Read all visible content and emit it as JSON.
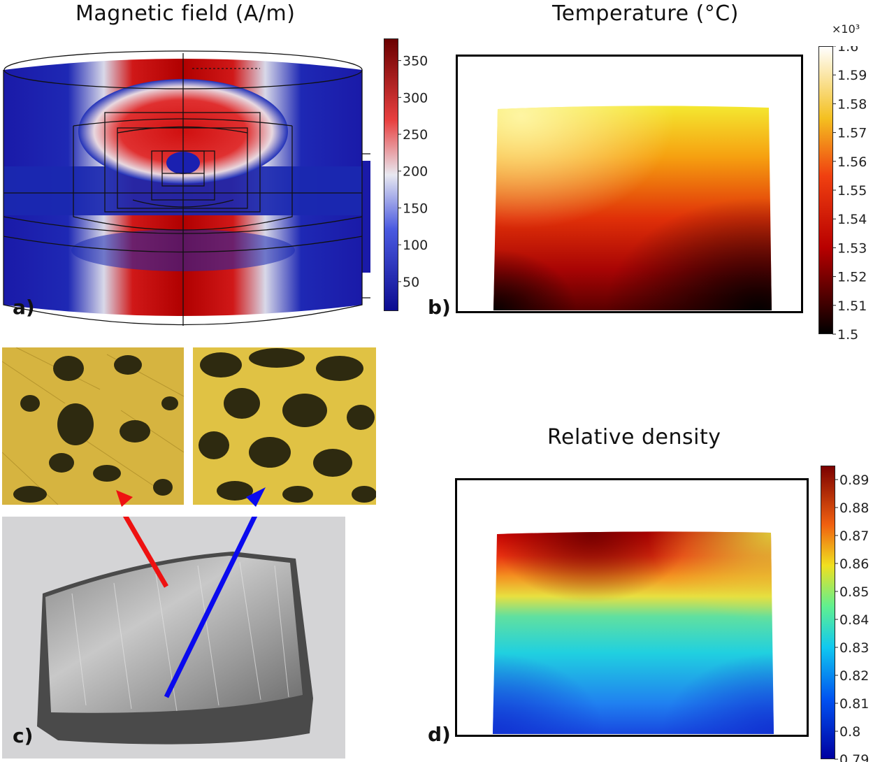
{
  "panels": {
    "a": {
      "label": "a)",
      "title": "Magnetic field (A/m)",
      "colorbar": {
        "ticks": [
          "350",
          "300",
          "250",
          "200",
          "150",
          "100",
          "50"
        ],
        "values": [
          350,
          300,
          250,
          200,
          150,
          100,
          50
        ],
        "min": 10,
        "max": 380
      },
      "colors": {
        "low": "#1a1aa8",
        "mid": "#e8e8e8",
        "high": "#c80000"
      }
    },
    "b": {
      "label": "b)",
      "title": "Temperature (°C)",
      "colorbar": {
        "multiplier": "×10³",
        "ticks": [
          "1.6",
          "1.59",
          "1.58",
          "1.57",
          "1.56",
          "1.55",
          "1.54",
          "1.53",
          "1.52",
          "1.51",
          "1.5"
        ],
        "values": [
          1.6,
          1.59,
          1.58,
          1.57,
          1.56,
          1.55,
          1.54,
          1.53,
          1.52,
          1.51,
          1.5
        ],
        "min": 1.5,
        "max": 1.6
      }
    },
    "c": {
      "label": "c)",
      "colors": {
        "left_arrow": "#ee1111",
        "right_arrow": "#0a0aee",
        "micrograph": "#d8b640",
        "pore": "#2e2a10"
      }
    },
    "d": {
      "label": "d)",
      "title": "Relative density",
      "colorbar": {
        "ticks": [
          "0.89",
          "0.88",
          "0.87",
          "0.86",
          "0.85",
          "0.84",
          "0.83",
          "0.82",
          "0.81",
          "0.8",
          "0.79"
        ],
        "values": [
          0.89,
          0.88,
          0.87,
          0.86,
          0.85,
          0.84,
          0.83,
          0.82,
          0.81,
          0.8,
          0.79
        ],
        "min": 0.79,
        "max": 0.895
      }
    }
  }
}
